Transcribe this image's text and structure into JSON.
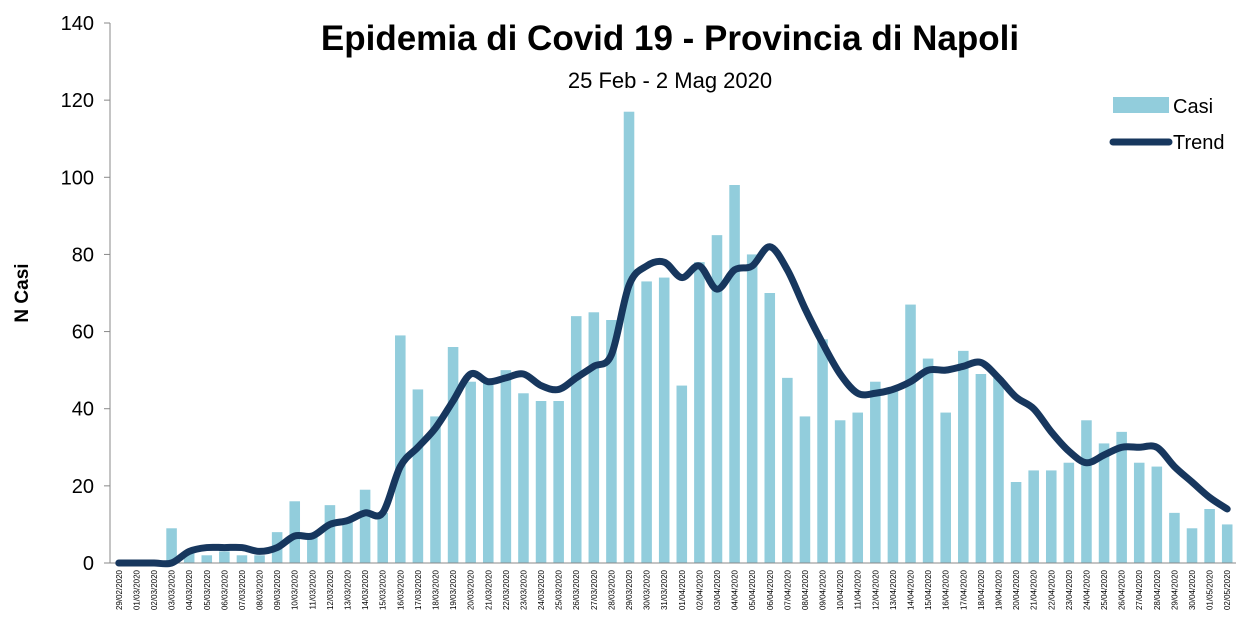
{
  "chart_data": {
    "type": "bar_line",
    "title": "Epidemia di Covid 19 - Provincia di Napoli",
    "subtitle": "25 Feb - 2 Mag 2020",
    "y_label": "N Casi",
    "categories": [
      "29/02/2020",
      "01/03/2020",
      "02/03/2020",
      "03/03/2020",
      "04/03/2020",
      "05/03/2020",
      "06/03/2020",
      "07/03/2020",
      "08/03/2020",
      "09/03/2020",
      "10/03/2020",
      "11/03/2020",
      "12/03/2020",
      "13/03/2020",
      "14/03/2020",
      "15/03/2020",
      "16/03/2020",
      "17/03/2020",
      "18/03/2020",
      "19/03/2020",
      "20/03/2020",
      "21/03/2020",
      "22/03/2020",
      "23/03/2020",
      "24/03/2020",
      "25/03/2020",
      "26/03/2020",
      "27/03/2020",
      "28/03/2020",
      "29/03/2020",
      "30/03/2020",
      "31/03/2020",
      "01/04/2020",
      "02/04/2020",
      "03/04/2020",
      "04/04/2020",
      "05/04/2020",
      "06/04/2020",
      "07/04/2020",
      "08/04/2020",
      "09/04/2020",
      "10/04/2020",
      "11/04/2020",
      "12/04/2020",
      "13/04/2020",
      "14/04/2020",
      "15/04/2020",
      "16/04/2020",
      "17/04/2020",
      "18/04/2020",
      "19/04/2020",
      "20/04/2020",
      "21/04/2020",
      "22/04/2020",
      "23/04/2020",
      "24/04/2020",
      "25/04/2020",
      "26/04/2020",
      "27/04/2020",
      "28/04/2020",
      "29/04/2020",
      "30/04/2020",
      "01/05/2020",
      "02/05/2020"
    ],
    "series": [
      {
        "name": "Casi",
        "type": "bar",
        "color": "#92cddc",
        "values": [
          0,
          0,
          0,
          9,
          3,
          2,
          3,
          2,
          2,
          8,
          16,
          7,
          15,
          11,
          19,
          13,
          59,
          45,
          38,
          56,
          47,
          47,
          50,
          44,
          42,
          42,
          64,
          65,
          63,
          117,
          73,
          74,
          46,
          78,
          85,
          98,
          80,
          70,
          48,
          38,
          58,
          37,
          39,
          47,
          45,
          67,
          53,
          39,
          55,
          49,
          48,
          21,
          24,
          24,
          26,
          37,
          31,
          34,
          26,
          25,
          13,
          9,
          14,
          10
        ]
      },
      {
        "name": "Trend",
        "type": "line",
        "color": "#17375e",
        "values": [
          0,
          0,
          0,
          0,
          3,
          4,
          4,
          4,
          3,
          4,
          7,
          7,
          10,
          11,
          13,
          13,
          25,
          30,
          35,
          42,
          49,
          47,
          48,
          49,
          46,
          45,
          48,
          51,
          54,
          72,
          77,
          78,
          74,
          77,
          71,
          76,
          77,
          82,
          76,
          66,
          57,
          49,
          44,
          44,
          45,
          47,
          50,
          50,
          51,
          52,
          48,
          43,
          40,
          34,
          29,
          26,
          28,
          30,
          30,
          30,
          25,
          21,
          17,
          14
        ]
      }
    ],
    "ylim": [
      0,
      140
    ],
    "yticks": [
      0,
      20,
      40,
      60,
      80,
      100,
      120,
      140
    ],
    "legend": "top-right"
  }
}
